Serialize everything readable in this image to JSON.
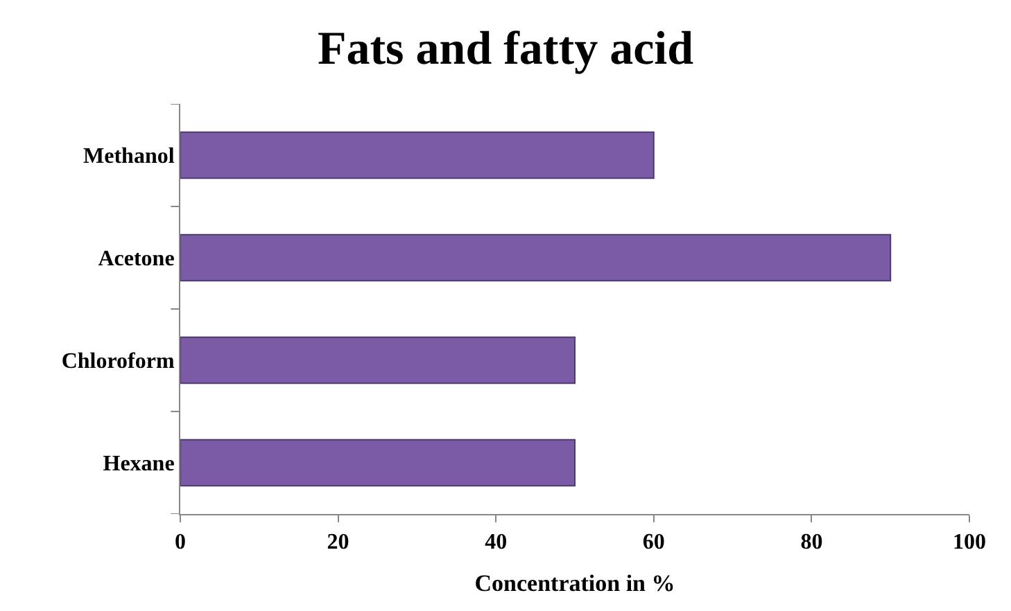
{
  "chart_data": {
    "type": "bar",
    "orientation": "horizontal",
    "title": "Fats and fatty acid",
    "xlabel": "Concentration in %",
    "categories": [
      "Methanol",
      "Acetone",
      "Chloroform",
      "Hexane"
    ],
    "values": [
      60,
      90,
      50,
      50
    ],
    "color": "#7b5ba6",
    "xlim": [
      0,
      100
    ],
    "xticks": [
      0,
      20,
      40,
      60,
      80,
      100
    ],
    "legend": false
  }
}
